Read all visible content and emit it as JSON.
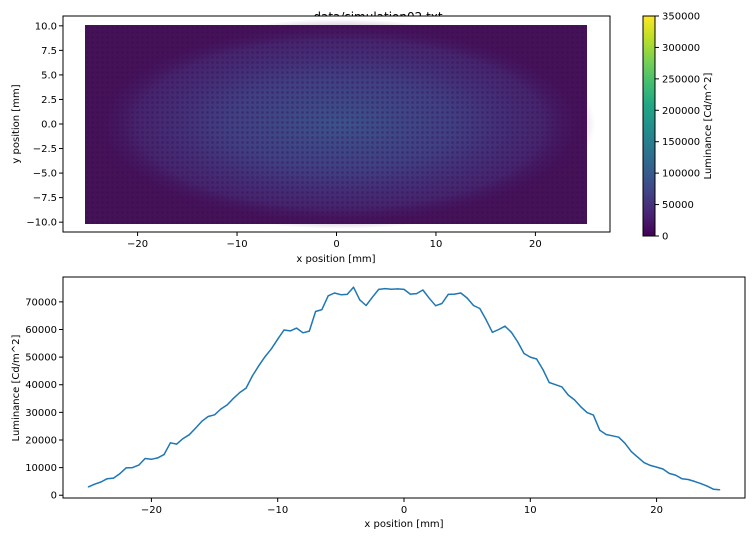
{
  "title": "data/simulation02.txt",
  "chart_data": [
    {
      "type": "heatmap",
      "xlabel": "x position [mm]",
      "ylabel": "y position [mm]",
      "xlim": [
        -27.5,
        27.5
      ],
      "ylim": [
        -11,
        11
      ],
      "x_ticks": [
        -20,
        -10,
        0,
        10,
        20
      ],
      "y_ticks": [
        -10.0,
        -7.5,
        -5.0,
        -2.5,
        0.0,
        2.5,
        5.0,
        7.5,
        10.0
      ],
      "x_tick_labels": [
        "−20",
        "−10",
        "0",
        "10",
        "20"
      ],
      "y_tick_labels": [
        "−10.0",
        "−7.5",
        "−5.0",
        "−2.5",
        "0.0",
        "2.5",
        "5.0",
        "7.5",
        "10.0"
      ],
      "data_extent": {
        "x": [
          -25,
          25
        ],
        "y": [
          -10,
          10
        ]
      },
      "colormap": "viridis",
      "colorbar": {
        "label": "Luminance [Cd/m^2]",
        "range": [
          0,
          350000
        ],
        "ticks": [
          0,
          50000,
          100000,
          150000,
          200000,
          250000,
          300000,
          350000
        ],
        "tick_labels": [
          "0",
          "50000",
          "100000",
          "150000",
          "200000",
          "250000",
          "300000",
          "350000"
        ]
      },
      "peak_value": 75000,
      "peak_location": [
        0,
        0
      ],
      "grid": false
    },
    {
      "type": "line",
      "xlabel": "x position [mm]",
      "ylabel": "Luminance [Cd/m^2]",
      "xlim": [
        -27,
        27
      ],
      "ylim": [
        -1000,
        79000
      ],
      "x_ticks": [
        -20,
        -10,
        0,
        10,
        20
      ],
      "y_ticks": [
        0,
        10000,
        20000,
        30000,
        40000,
        50000,
        60000,
        70000
      ],
      "x_tick_labels": [
        "−20",
        "−10",
        "0",
        "10",
        "20"
      ],
      "y_tick_labels": [
        "0",
        "10000",
        "20000",
        "30000",
        "40000",
        "50000",
        "60000",
        "70000"
      ],
      "color": "#1f77b4",
      "grid": false,
      "x": [
        -25,
        -24.5,
        -24,
        -23.5,
        -23,
        -22.5,
        -22,
        -21.5,
        -21,
        -20.5,
        -20,
        -19.5,
        -19,
        -18.5,
        -18,
        -17.5,
        -17,
        -16.5,
        -16,
        -15.5,
        -15,
        -14.5,
        -14,
        -13.5,
        -13,
        -12.5,
        -12,
        -11.5,
        -11,
        -10.5,
        -10,
        -9.5,
        -9,
        -8.5,
        -8,
        -7.5,
        -7,
        -6.5,
        -6,
        -5.5,
        -5,
        -4.5,
        -4,
        -3.5,
        -3,
        -2.5,
        -2,
        -1.5,
        -1,
        -0.5,
        0,
        0.5,
        1,
        1.5,
        2,
        2.5,
        3,
        3.5,
        4,
        4.5,
        5,
        5.5,
        6,
        6.5,
        7,
        7.5,
        8,
        8.5,
        9,
        9.5,
        10,
        10.5,
        11,
        11.5,
        12,
        12.5,
        13,
        13.5,
        14,
        14.5,
        15,
        15.5,
        16,
        16.5,
        17,
        17.5,
        18,
        18.5,
        19,
        19.5,
        20,
        20.5,
        21,
        21.5,
        22,
        22.5,
        23,
        23.5,
        24,
        24.5,
        25
      ],
      "y": [
        3000,
        4000,
        4800,
        6000,
        6200,
        7800,
        9900,
        10000,
        10900,
        13300,
        13000,
        13500,
        14700,
        19000,
        18500,
        20500,
        21900,
        24300,
        26800,
        28500,
        29100,
        31200,
        32700,
        35100,
        37200,
        38800,
        43200,
        46900,
        50200,
        53000,
        56500,
        59800,
        59500,
        60500,
        58800,
        59400,
        66500,
        67200,
        72200,
        73200,
        72600,
        72700,
        75300,
        70700,
        68700,
        71700,
        74500,
        74800,
        74600,
        74700,
        74500,
        72800,
        73000,
        74300,
        71300,
        68600,
        69400,
        72700,
        72800,
        73200,
        71400,
        68700,
        67600,
        63500,
        59000,
        60000,
        61200,
        59000,
        55500,
        51300,
        50000,
        49300,
        45500,
        40800,
        40000,
        39200,
        36300,
        34500,
        32000,
        29900,
        29000,
        23500,
        22000,
        21500,
        21000,
        18800,
        15800,
        13800,
        11800,
        10800,
        10200,
        9500,
        7900,
        7300,
        6000,
        5700,
        5000,
        4200,
        3300,
        2200,
        2000
      ]
    }
  ]
}
